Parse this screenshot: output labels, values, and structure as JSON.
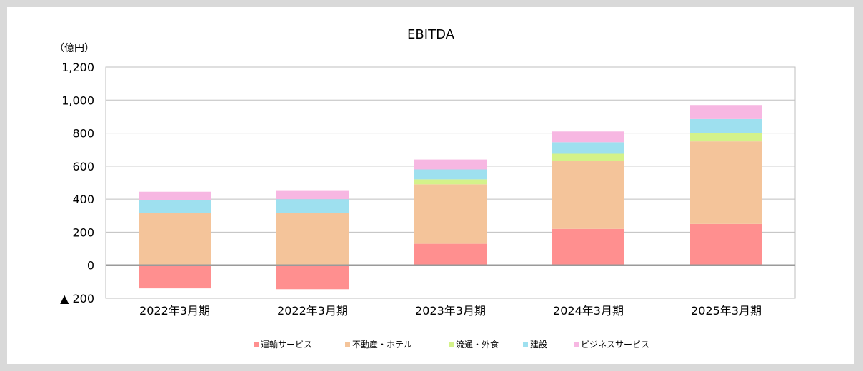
{
  "chart_data": {
    "type": "bar",
    "stacked": true,
    "title": "EBITDA",
    "unit_label": "（億円）",
    "categories": [
      "2022年3月期",
      "2022年3月期",
      "2023年3月期",
      "2024年3月期",
      "2025年3月期"
    ],
    "series": [
      {
        "name": "運輸サービス",
        "color": "#ff8f8f",
        "values": [
          -140,
          -145,
          130,
          220,
          250
        ]
      },
      {
        "name": "不動産・ホテル",
        "color": "#f4c49a",
        "values": [
          315,
          315,
          360,
          410,
          500
        ]
      },
      {
        "name": "流通・外食",
        "color": "#d4f28a",
        "values": [
          0,
          0,
          30,
          45,
          50
        ]
      },
      {
        "name": "建設",
        "color": "#9ee0ef",
        "values": [
          80,
          85,
          60,
          70,
          85
        ]
      },
      {
        "name": "ビジネスサービス",
        "color": "#f7b7e2",
        "values": [
          50,
          50,
          60,
          65,
          85
        ]
      }
    ],
    "ylim": [
      -200,
      1200
    ],
    "y_ticks": [
      -200,
      0,
      200,
      400,
      600,
      800,
      1000,
      1200
    ],
    "y_tick_labels": [
      "▲ 200",
      "0",
      "200",
      "400",
      "600",
      "800",
      "1,000",
      "1,200"
    ],
    "grid": true,
    "legend": "bottom"
  }
}
